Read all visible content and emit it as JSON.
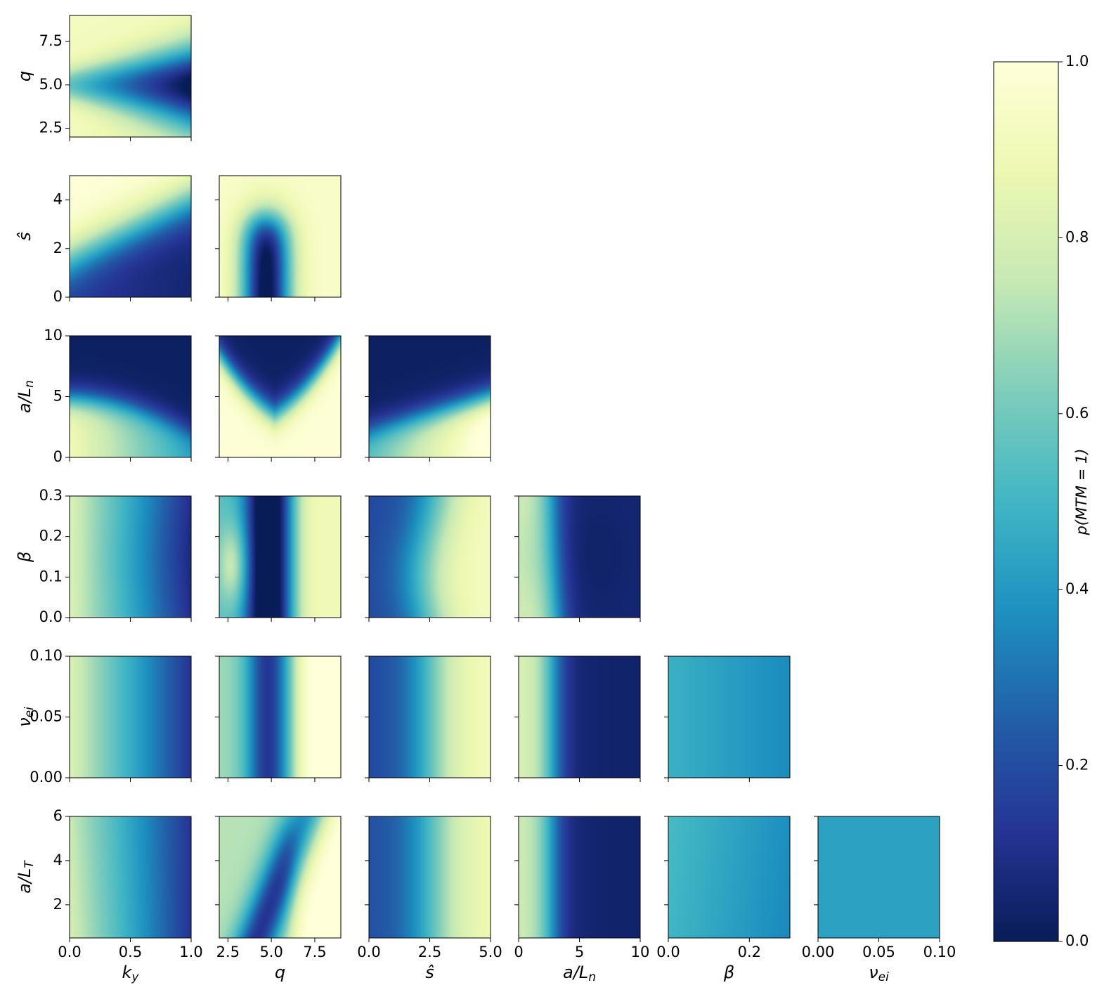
{
  "chart_data": {
    "type": "heatmap",
    "layout": "corner-plot (lower triangle)",
    "colormap": "YlGnBu_r",
    "colormap_stops": [
      "#081d58",
      "#253494",
      "#225ea8",
      "#1d91c0",
      "#41b6c4",
      "#7fcdbb",
      "#c7e9b4",
      "#edf8b1",
      "#ffffd9"
    ],
    "colorbar": {
      "label": "p(MTM = 1)",
      "range": [
        0,
        1
      ],
      "ticks": [
        "0.0",
        "0.2",
        "0.4",
        "0.6",
        "0.8",
        "1.0"
      ]
    },
    "parameters": [
      {
        "key": "ky",
        "label_main": "k",
        "label_sub": "y",
        "range": [
          0,
          1
        ],
        "ticks": [
          0,
          0.5,
          1
        ],
        "tick_labels": [
          "0.0",
          "0.5",
          "1.0"
        ]
      },
      {
        "key": "q",
        "label_main": "q",
        "label_sub": "",
        "range": [
          2,
          9
        ],
        "ticks": [
          2.5,
          5,
          7.5
        ],
        "tick_labels": [
          "2.5",
          "5.0",
          "7.5"
        ]
      },
      {
        "key": "s",
        "label_main": "ŝ",
        "label_sub": "",
        "range": [
          0,
          5
        ],
        "ticks": [
          0,
          2.5,
          5
        ],
        "tick_labels": [
          "0",
          "2",
          "4"
        ],
        "x_tick_labels": [
          "0.0",
          "2.5",
          "5.0"
        ],
        "y_ticks": [
          0,
          2,
          4
        ]
      },
      {
        "key": "aLn",
        "label_main": "a/L",
        "label_sub": "n",
        "range": [
          0,
          10
        ],
        "ticks": [
          0,
          5,
          10
        ],
        "tick_labels": [
          "0",
          "5",
          "10"
        ]
      },
      {
        "key": "beta",
        "label_main": "β",
        "label_sub": "",
        "range": [
          0,
          0.3
        ],
        "ticks": [
          0,
          0.2
        ],
        "tick_labels": [
          "0.0",
          "0.2"
        ],
        "y_ticks": [
          0,
          0.1,
          0.2,
          0.3
        ],
        "y_tick_labels": [
          "0.0",
          "0.1",
          "0.2",
          "0.3"
        ]
      },
      {
        "key": "nu",
        "label_main": "ν",
        "label_sub": "ei",
        "range": [
          0,
          0.1
        ],
        "ticks": [
          0,
          0.05,
          0.1
        ],
        "tick_labels": [
          "0.00",
          "0.05",
          "0.10"
        ]
      },
      {
        "key": "aLT",
        "label_main": "a/L",
        "label_sub": "T",
        "range": [
          0.5,
          6
        ],
        "ticks": [
          2,
          4,
          6
        ],
        "tick_labels": [
          "2",
          "4",
          "6"
        ]
      }
    ],
    "panels": [
      {
        "x": "ky",
        "y": "q",
        "description": "low prob in center (q~5) at high ky"
      },
      {
        "x": "ky",
        "y": "s"
      },
      {
        "x": "q",
        "y": "s"
      },
      {
        "x": "ky",
        "y": "aLn"
      },
      {
        "x": "q",
        "y": "aLn"
      },
      {
        "x": "s",
        "y": "aLn"
      },
      {
        "x": "ky",
        "y": "beta"
      },
      {
        "x": "q",
        "y": "beta"
      },
      {
        "x": "s",
        "y": "beta"
      },
      {
        "x": "aLn",
        "y": "beta"
      },
      {
        "x": "ky",
        "y": "nu"
      },
      {
        "x": "q",
        "y": "nu"
      },
      {
        "x": "s",
        "y": "nu"
      },
      {
        "x": "aLn",
        "y": "nu"
      },
      {
        "x": "beta",
        "y": "nu"
      },
      {
        "x": "ky",
        "y": "aLT"
      },
      {
        "x": "q",
        "y": "aLT"
      },
      {
        "x": "s",
        "y": "aLT"
      },
      {
        "x": "aLn",
        "y": "aLT"
      },
      {
        "x": "beta",
        "y": "aLT"
      },
      {
        "x": "nu",
        "y": "aLT"
      }
    ]
  }
}
